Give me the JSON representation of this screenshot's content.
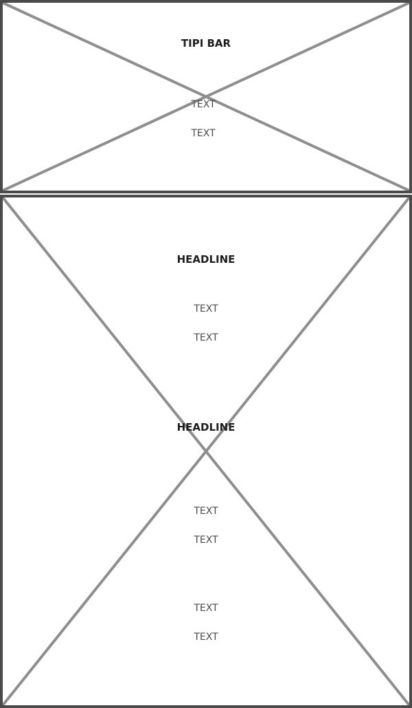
{
  "top_panel": {
    "title": "TIPI BAR",
    "lines": [
      "TEXT",
      "TEXT"
    ]
  },
  "bottom_panel": {
    "section1": {
      "headline": "HEADLINE",
      "lines": [
        "TEXT",
        "TEXT"
      ]
    },
    "section2": {
      "headline": "HEADLINE",
      "lines": [
        "TEXT",
        "TEXT"
      ]
    },
    "section3": {
      "lines": [
        "TEXT",
        "TEXT"
      ]
    }
  },
  "colors": {
    "frame": "#4a4a4a",
    "cross": "#8e8e8e",
    "headline": "#1e1e1e",
    "text": "#4a4a4a"
  }
}
